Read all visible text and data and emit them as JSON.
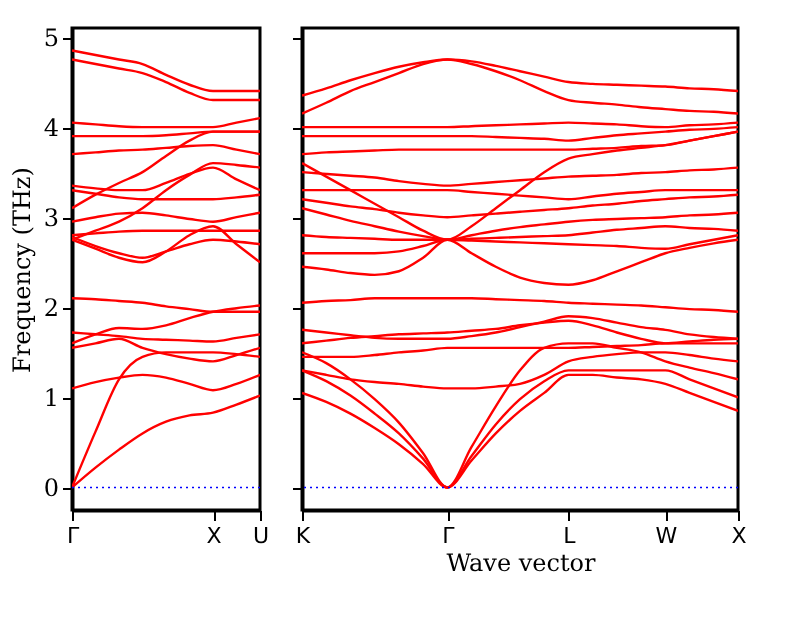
{
  "chart_data": [
    {
      "type": "line",
      "ylabel": "Frequency (THz)",
      "categories": [
        "Γ",
        null,
        null,
        null,
        null,
        null,
        "X",
        null,
        "U"
      ],
      "ylim": [
        -0.25,
        5.1
      ],
      "yticks": [
        0,
        1,
        2,
        3,
        4,
        5
      ],
      "grid": false,
      "ref_lines": [
        {
          "axis": "y",
          "value": 0,
          "color": "#0000ff",
          "line_style": "dotted"
        }
      ],
      "series": [
        {
          "color": "#ff0000",
          "values": [
            0,
            0.22,
            0.42,
            0.6,
            0.73,
            0.8,
            0.83,
            0.92,
            1.02
          ]
        },
        {
          "color": "#ff0000",
          "values": [
            0,
            0.62,
            1.2,
            1.45,
            1.5,
            1.5,
            1.5,
            1.48,
            1.45
          ]
        },
        {
          "color": "#ff0000",
          "values": [
            1.1,
            1.17,
            1.22,
            1.25,
            1.22,
            1.15,
            1.08,
            1.15,
            1.25
          ]
        },
        {
          "color": "#ff0000",
          "values": [
            1.55,
            1.6,
            1.65,
            1.55,
            1.48,
            1.43,
            1.4,
            1.47,
            1.55
          ]
        },
        {
          "color": "#ff0000",
          "values": [
            1.72,
            1.7,
            1.68,
            1.65,
            1.64,
            1.63,
            1.62,
            1.66,
            1.7
          ]
        },
        {
          "color": "#ff0000",
          "values": [
            1.6,
            1.7,
            1.77,
            1.76,
            1.8,
            1.88,
            1.95,
            1.99,
            2.02
          ]
        },
        {
          "color": "#ff0000",
          "values": [
            2.1,
            2.09,
            2.07,
            2.05,
            2.01,
            1.98,
            1.95,
            1.95,
            1.95
          ]
        },
        {
          "color": "#ff0000",
          "values": [
            2.75,
            2.65,
            2.55,
            2.5,
            2.62,
            2.8,
            2.9,
            2.7,
            2.5
          ]
        },
        {
          "color": "#ff0000",
          "values": [
            2.78,
            2.68,
            2.6,
            2.55,
            2.62,
            2.7,
            2.75,
            2.73,
            2.7
          ]
        },
        {
          "color": "#ff0000",
          "values": [
            2.8,
            2.82,
            2.84,
            2.85,
            2.85,
            2.85,
            2.85,
            2.85,
            2.85
          ]
        },
        {
          "color": "#ff0000",
          "values": [
            2.95,
            3.0,
            3.04,
            3.05,
            3.02,
            2.98,
            2.95,
            3.0,
            3.05
          ]
        },
        {
          "color": "#ff0000",
          "values": [
            3.3,
            3.26,
            3.22,
            3.2,
            3.2,
            3.2,
            3.2,
            3.22,
            3.25
          ]
        },
        {
          "color": "#ff0000",
          "values": [
            3.35,
            3.32,
            3.3,
            3.3,
            3.38,
            3.48,
            3.55,
            3.42,
            3.3
          ]
        },
        {
          "color": "#ff0000",
          "values": [
            2.75,
            2.85,
            2.95,
            3.1,
            3.3,
            3.47,
            3.6,
            3.58,
            3.55
          ]
        },
        {
          "color": "#ff0000",
          "values": [
            3.7,
            3.72,
            3.74,
            3.75,
            3.77,
            3.79,
            3.8,
            3.75,
            3.7
          ]
        },
        {
          "color": "#ff0000",
          "values": [
            3.9,
            3.9,
            3.9,
            3.9,
            3.91,
            3.93,
            3.95,
            3.95,
            3.95
          ]
        },
        {
          "color": "#ff0000",
          "values": [
            4.05,
            4.03,
            4.01,
            4.0,
            4.0,
            4.0,
            4.0,
            4.05,
            4.1
          ]
        },
        {
          "color": "#ff0000",
          "values": [
            3.1,
            3.25,
            3.38,
            3.5,
            3.68,
            3.85,
            3.95,
            3.95,
            3.95
          ]
        },
        {
          "color": "#ff0000",
          "values": [
            4.75,
            4.7,
            4.65,
            4.6,
            4.5,
            4.38,
            4.3,
            4.3,
            4.3
          ]
        },
        {
          "color": "#ff0000",
          "values": [
            4.85,
            4.8,
            4.75,
            4.7,
            4.58,
            4.47,
            4.4,
            4.4,
            4.4
          ]
        }
      ]
    },
    {
      "type": "line",
      "xlabel": "Wave vector",
      "categories": [
        "K",
        null,
        null,
        null,
        null,
        null,
        "Γ",
        null,
        null,
        null,
        null,
        "L",
        null,
        null,
        null,
        "W",
        null,
        null,
        "X"
      ],
      "ylim": [
        -0.25,
        5.1
      ],
      "yticks": [
        0,
        1,
        2,
        3,
        4,
        5
      ],
      "tick_labels": "x",
      "grid": false,
      "ref_lines": [
        {
          "axis": "y",
          "value": 0,
          "color": "#0000ff",
          "line_style": "dotted"
        }
      ],
      "series": [
        {
          "color": "#ff0000",
          "values": [
            1.05,
            0.95,
            0.82,
            0.66,
            0.48,
            0.26,
            0,
            0.3,
            0.6,
            0.85,
            1.05,
            1.25,
            1.25,
            1.22,
            1.2,
            1.15,
            1.05,
            0.95,
            0.85
          ]
        },
        {
          "color": "#ff0000",
          "values": [
            1.3,
            1.18,
            1.02,
            0.82,
            0.6,
            0.32,
            0,
            0.35,
            0.7,
            0.98,
            1.18,
            1.3,
            1.3,
            1.3,
            1.3,
            1.3,
            1.2,
            1.1,
            1.0
          ]
        },
        {
          "color": "#ff0000",
          "values": [
            1.5,
            1.38,
            1.2,
            0.98,
            0.72,
            0.38,
            0,
            0.45,
            0.9,
            1.3,
            1.55,
            1.6,
            1.6,
            1.55,
            1.5,
            1.4,
            1.33,
            1.27,
            1.2
          ]
        },
        {
          "color": "#ff0000",
          "values": [
            1.3,
            1.25,
            1.2,
            1.17,
            1.15,
            1.12,
            1.1,
            1.1,
            1.12,
            1.15,
            1.25,
            1.4,
            1.45,
            1.48,
            1.5,
            1.5,
            1.47,
            1.43,
            1.4
          ]
        },
        {
          "color": "#ff0000",
          "values": [
            1.45,
            1.45,
            1.45,
            1.47,
            1.5,
            1.52,
            1.55,
            1.55,
            1.55,
            1.55,
            1.55,
            1.55,
            1.56,
            1.57,
            1.58,
            1.6,
            1.6,
            1.6,
            1.6
          ]
        },
        {
          "color": "#ff0000",
          "values": [
            1.6,
            1.63,
            1.66,
            1.68,
            1.7,
            1.71,
            1.72,
            1.74,
            1.76,
            1.8,
            1.83,
            1.85,
            1.8,
            1.72,
            1.65,
            1.6,
            1.62,
            1.64,
            1.65
          ]
        },
        {
          "color": "#ff0000",
          "values": [
            1.75,
            1.72,
            1.69,
            1.66,
            1.65,
            1.65,
            1.65,
            1.68,
            1.72,
            1.78,
            1.84,
            1.9,
            1.88,
            1.83,
            1.78,
            1.75,
            1.7,
            1.67,
            1.65
          ]
        },
        {
          "color": "#ff0000",
          "values": [
            2.05,
            2.07,
            2.08,
            2.1,
            2.1,
            2.1,
            2.1,
            2.1,
            2.09,
            2.08,
            2.07,
            2.05,
            2.04,
            2.03,
            2.02,
            2.0,
            1.98,
            1.97,
            1.95
          ]
        },
        {
          "color": "#ff0000",
          "values": [
            2.45,
            2.42,
            2.38,
            2.36,
            2.4,
            2.55,
            2.75,
            2.6,
            2.45,
            2.33,
            2.27,
            2.25,
            2.3,
            2.4,
            2.5,
            2.6,
            2.66,
            2.71,
            2.75
          ]
        },
        {
          "color": "#ff0000",
          "values": [
            2.6,
            2.6,
            2.6,
            2.6,
            2.62,
            2.68,
            2.75,
            2.74,
            2.73,
            2.72,
            2.71,
            2.7,
            2.69,
            2.68,
            2.66,
            2.65,
            2.7,
            2.75,
            2.8
          ]
        },
        {
          "color": "#ff0000",
          "values": [
            2.8,
            2.78,
            2.77,
            2.76,
            2.75,
            2.75,
            2.75,
            2.76,
            2.77,
            2.78,
            2.79,
            2.8,
            2.83,
            2.86,
            2.88,
            2.9,
            2.88,
            2.87,
            2.85
          ]
        },
        {
          "color": "#ff0000",
          "values": [
            3.1,
            3.03,
            2.96,
            2.9,
            2.84,
            2.79,
            2.75,
            2.8,
            2.85,
            2.89,
            2.92,
            2.95,
            2.97,
            2.98,
            2.99,
            3.0,
            3.02,
            3.03,
            3.05
          ]
        },
        {
          "color": "#ff0000",
          "values": [
            3.2,
            3.16,
            3.12,
            3.09,
            3.05,
            3.02,
            3.0,
            3.02,
            3.04,
            3.06,
            3.08,
            3.1,
            3.13,
            3.15,
            3.18,
            3.2,
            3.22,
            3.23,
            3.25
          ]
        },
        {
          "color": "#ff0000",
          "values": [
            3.3,
            3.3,
            3.3,
            3.3,
            3.3,
            3.3,
            3.3,
            3.28,
            3.26,
            3.24,
            3.22,
            3.2,
            3.23,
            3.26,
            3.28,
            3.3,
            3.3,
            3.3,
            3.3
          ]
        },
        {
          "color": "#ff0000",
          "values": [
            3.5,
            3.48,
            3.46,
            3.44,
            3.4,
            3.37,
            3.35,
            3.37,
            3.39,
            3.41,
            3.43,
            3.45,
            3.46,
            3.47,
            3.49,
            3.5,
            3.52,
            3.53,
            3.55
          ]
        },
        {
          "color": "#ff0000",
          "values": [
            3.7,
            3.72,
            3.73,
            3.74,
            3.75,
            3.75,
            3.75,
            3.75,
            3.75,
            3.75,
            3.75,
            3.75,
            3.76,
            3.77,
            3.79,
            3.8,
            3.85,
            3.9,
            3.95
          ]
        },
        {
          "color": "#ff0000",
          "values": [
            3.9,
            3.9,
            3.9,
            3.9,
            3.9,
            3.9,
            3.9,
            3.9,
            3.89,
            3.88,
            3.87,
            3.85,
            3.88,
            3.91,
            3.93,
            3.95,
            3.97,
            3.98,
            4.0
          ]
        },
        {
          "color": "#ff0000",
          "values": [
            4.0,
            4.0,
            4.0,
            4.0,
            4.0,
            4.0,
            4.0,
            4.01,
            4.02,
            4.03,
            4.04,
            4.05,
            4.04,
            4.03,
            4.01,
            4.0,
            4.02,
            4.03,
            4.05
          ]
        },
        {
          "color": "#ff0000",
          "values": [
            4.15,
            4.27,
            4.4,
            4.5,
            4.6,
            4.7,
            4.75,
            4.7,
            4.62,
            4.52,
            4.4,
            4.3,
            4.27,
            4.25,
            4.22,
            4.2,
            4.18,
            4.17,
            4.15
          ]
        },
        {
          "color": "#ff0000",
          "values": [
            4.35,
            4.43,
            4.52,
            4.6,
            4.67,
            4.72,
            4.75,
            4.73,
            4.68,
            4.62,
            4.56,
            4.5,
            4.48,
            4.47,
            4.46,
            4.45,
            4.43,
            4.42,
            4.4
          ]
        },
        {
          "color": "#ff0000",
          "values": [
            3.6,
            3.45,
            3.3,
            3.15,
            3.0,
            2.85,
            2.75,
            2.9,
            3.1,
            3.3,
            3.5,
            3.65,
            3.7,
            3.74,
            3.77,
            3.8,
            3.85,
            3.9,
            3.95
          ]
        }
      ]
    }
  ]
}
